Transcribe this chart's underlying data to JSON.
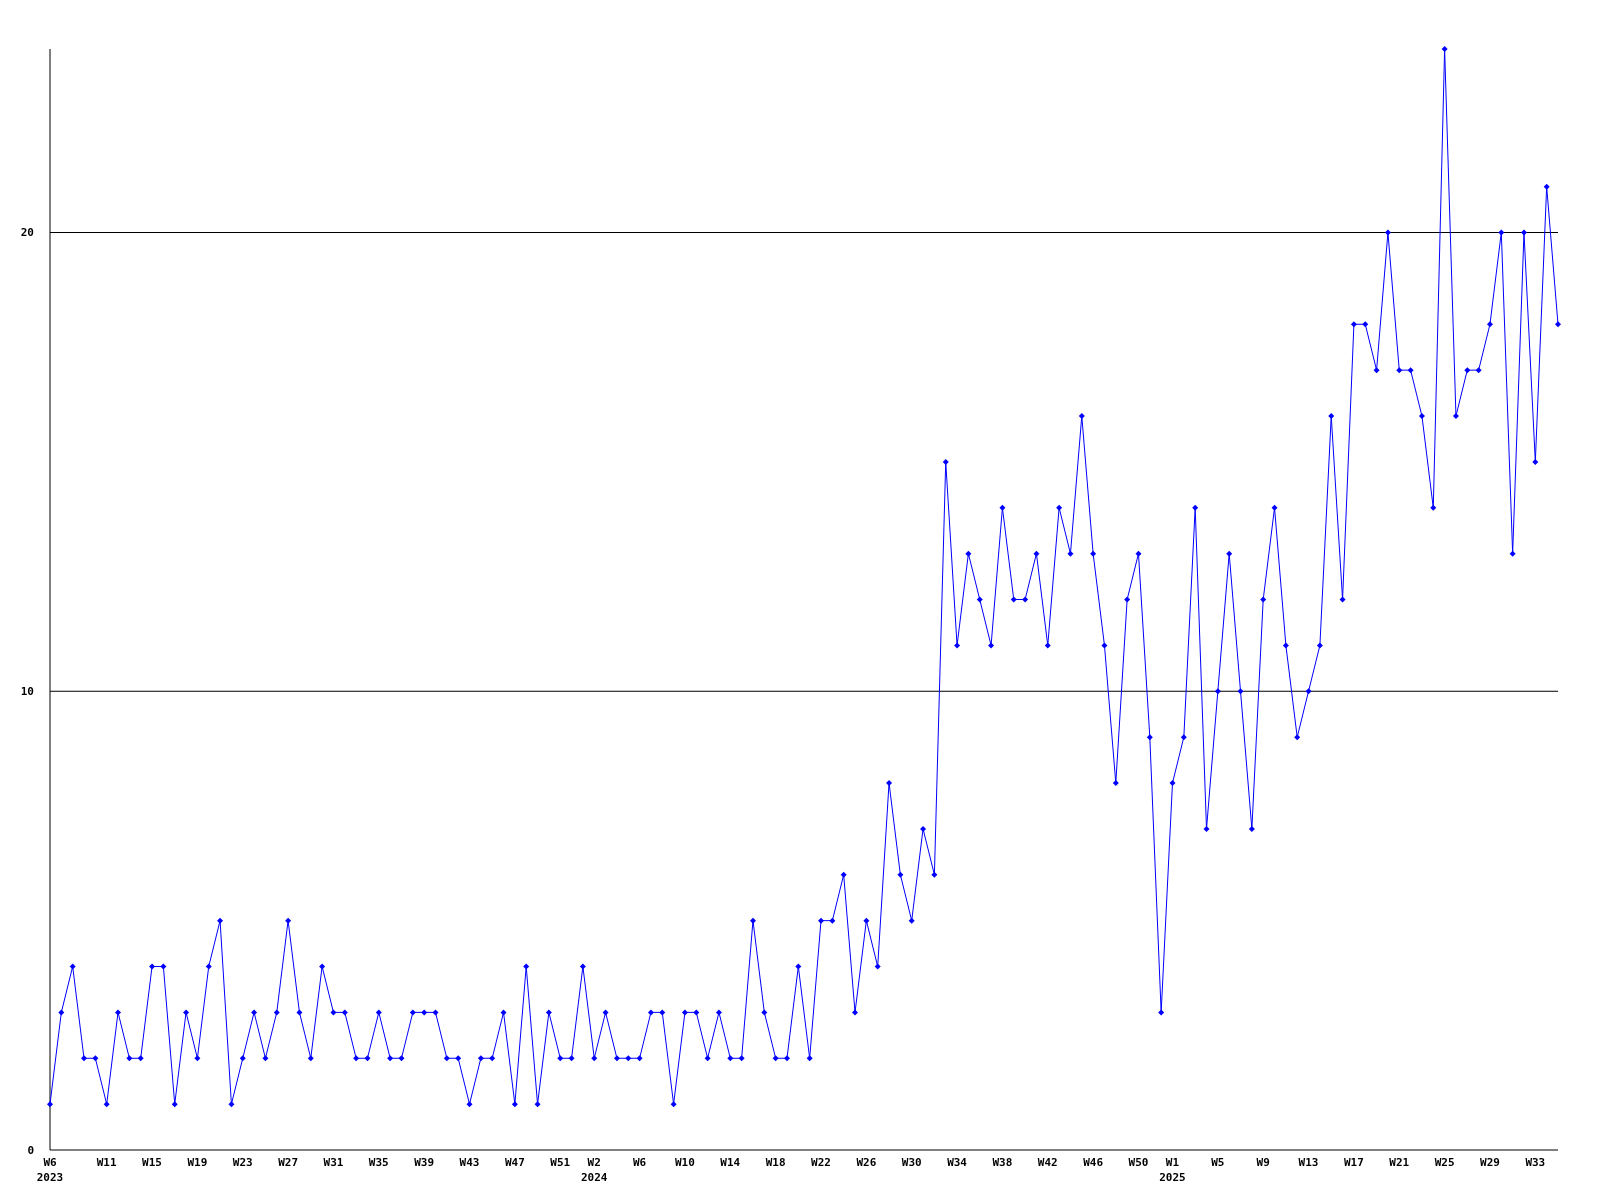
{
  "chart_data": {
    "type": "line",
    "color": "#0000ff",
    "marker": "diamond",
    "grid": "y",
    "ylim": [
      0,
      24
    ],
    "yticks": [
      0,
      10,
      20
    ],
    "categories": [
      "W6\n2023",
      null,
      null,
      null,
      null,
      "W11",
      null,
      null,
      null,
      "W15",
      null,
      null,
      null,
      "W19",
      null,
      null,
      null,
      "W23",
      null,
      null,
      null,
      "W27",
      null,
      null,
      null,
      "W31",
      null,
      null,
      null,
      "W35",
      null,
      null,
      null,
      "W39",
      null,
      null,
      null,
      "W43",
      null,
      null,
      null,
      "W47",
      null,
      null,
      null,
      "W51",
      null,
      null,
      "W2\n2024",
      null,
      null,
      null,
      "W6",
      null,
      null,
      null,
      "W10",
      null,
      null,
      null,
      "W14",
      null,
      null,
      null,
      "W18",
      null,
      null,
      null,
      "W22",
      null,
      null,
      null,
      "W26",
      null,
      null,
      null,
      "W30",
      null,
      null,
      null,
      "W34",
      null,
      null,
      null,
      "W38",
      null,
      null,
      null,
      "W42",
      null,
      null,
      null,
      "W46",
      null,
      null,
      null,
      "W50",
      null,
      null,
      "W1\n2025",
      null,
      null,
      null,
      "W5",
      null,
      null,
      null,
      "W9",
      null,
      null,
      null,
      "W13",
      null,
      null,
      null,
      "W17",
      null,
      null,
      null,
      "W21",
      null,
      null,
      null,
      "W25",
      null,
      null,
      null,
      "W29",
      null,
      null,
      null,
      "W33",
      null,
      null
    ],
    "values": [
      1,
      3,
      4,
      2,
      2,
      1,
      3,
      2,
      2,
      4,
      4,
      1,
      3,
      2,
      4,
      5,
      1,
      2,
      3,
      2,
      3,
      5,
      3,
      2,
      4,
      3,
      3,
      2,
      2,
      3,
      2,
      2,
      3,
      3,
      3,
      2,
      2,
      1,
      2,
      2,
      3,
      1,
      4,
      1,
      3,
      2,
      2,
      4,
      2,
      3,
      2,
      2,
      2,
      3,
      3,
      1,
      3,
      3,
      2,
      3,
      2,
      2,
      5,
      3,
      2,
      2,
      4,
      2,
      5,
      5,
      6,
      3,
      5,
      4,
      8,
      6,
      5,
      7,
      6,
      15,
      11,
      13,
      12,
      11,
      14,
      12,
      12,
      13,
      11,
      14,
      13,
      16,
      13,
      11,
      8,
      12,
      13,
      9,
      3,
      8,
      9,
      14,
      7,
      10,
      13,
      10,
      7,
      12,
      14,
      11,
      9,
      10,
      11,
      16,
      12,
      18,
      18,
      17,
      20,
      17,
      17,
      16,
      14,
      24,
      16,
      17,
      17,
      18,
      20,
      13,
      20,
      15,
      21,
      18
    ]
  }
}
